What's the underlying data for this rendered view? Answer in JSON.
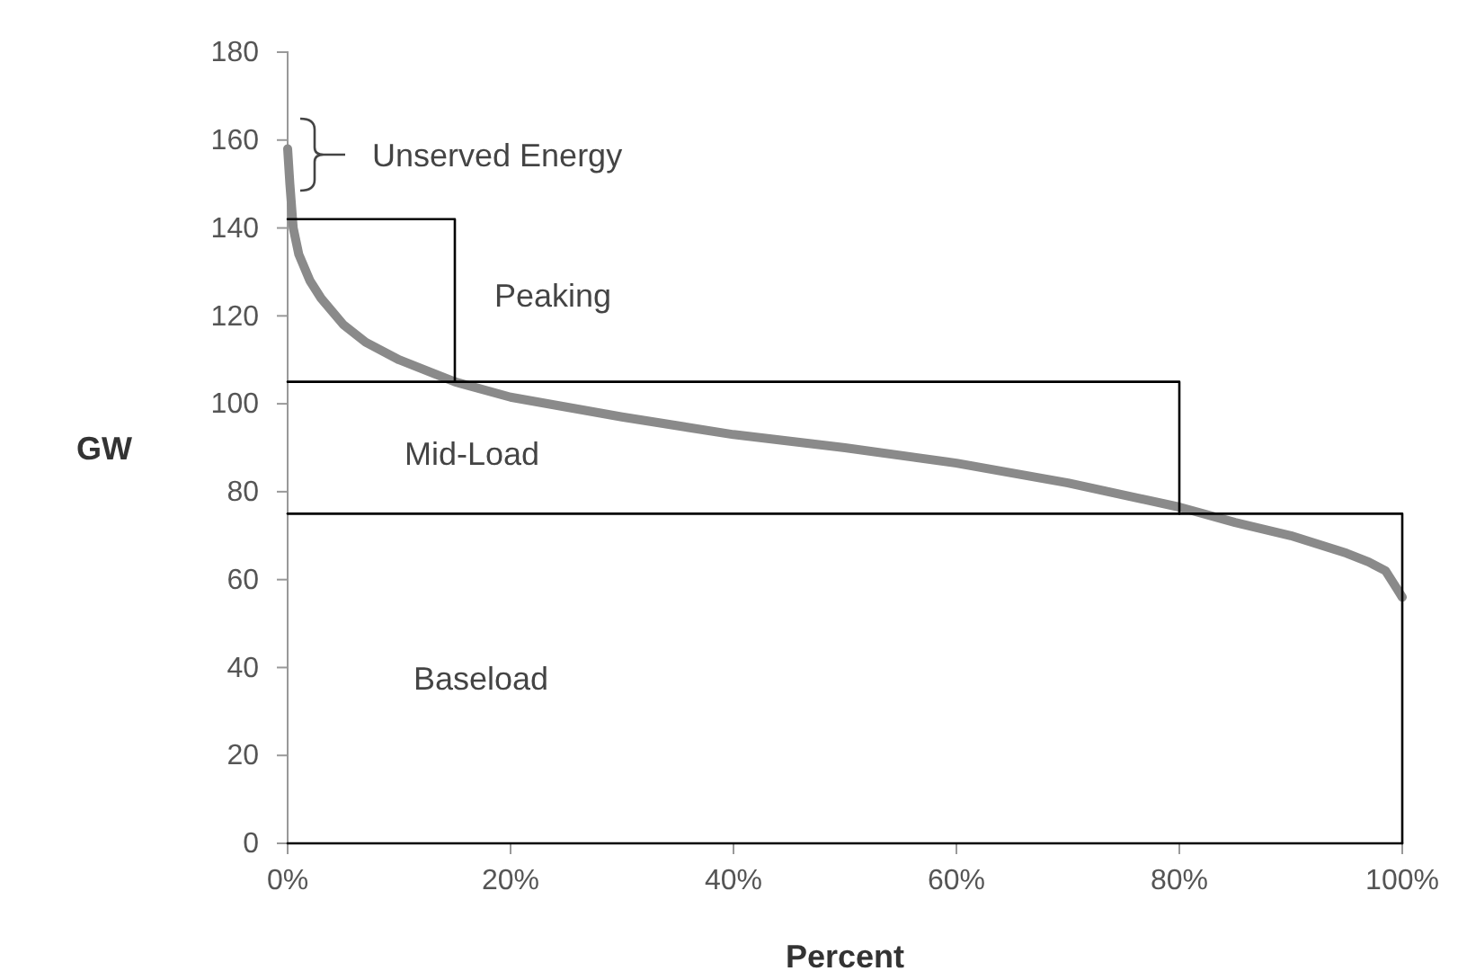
{
  "chart_data": {
    "type": "line",
    "xlabel": "Percent",
    "ylabel": "GW",
    "xlim": [
      0,
      100
    ],
    "ylim": [
      0,
      180
    ],
    "xticks": [
      {
        "value": 0,
        "label": "0%"
      },
      {
        "value": 20,
        "label": "20%"
      },
      {
        "value": 40,
        "label": "40%"
      },
      {
        "value": 60,
        "label": "60%"
      },
      {
        "value": 80,
        "label": "80%"
      },
      {
        "value": 100,
        "label": "100%"
      }
    ],
    "yticks": [
      0,
      20,
      40,
      60,
      80,
      100,
      120,
      140,
      160,
      180
    ],
    "grid": false,
    "marker": "none",
    "line_style": "solid",
    "series": [
      {
        "color": "#8a8a8a",
        "x": [
          0,
          0.2,
          0.5,
          1,
          2,
          3,
          5,
          7,
          10,
          13,
          15,
          20,
          30,
          40,
          50,
          60,
          70,
          80,
          85,
          90,
          95,
          97,
          98.5,
          99.5,
          100
        ],
        "values": [
          158,
          150,
          140,
          134,
          128,
          124,
          118,
          114,
          110,
          107,
          105,
          101.5,
          97,
          93,
          90,
          86.5,
          82,
          76.5,
          73,
          70,
          66,
          64,
          62,
          58,
          56
        ]
      },
      {
        "type": "step",
        "color": "#000000",
        "x": [
          0,
          15,
          80,
          100
        ],
        "values": [
          142,
          105,
          75,
          0
        ]
      },
      {
        "color": "#000000",
        "x": [
          0,
          15
        ],
        "values": [
          105,
          105
        ]
      },
      {
        "color": "#000000",
        "x": [
          0,
          80
        ],
        "values": [
          75,
          75
        ]
      },
      {
        "color": "#000000",
        "x": [
          0,
          100
        ],
        "values": [
          0,
          0
        ]
      }
    ],
    "annotations": [
      "Unserved Energy",
      "Peaking",
      "Mid-Load",
      "Baseload"
    ]
  }
}
